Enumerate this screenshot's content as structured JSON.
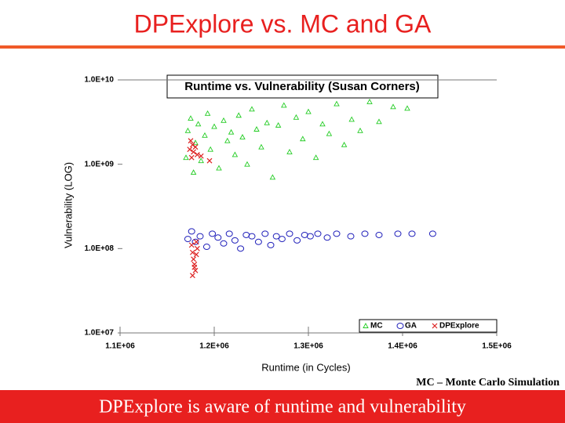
{
  "slide": {
    "title": "DPExplore vs. MC and GA",
    "note": "MC – Monte Carlo Simulation",
    "footer": "DPExplore is aware of runtime and vulnerability"
  },
  "chart_data": {
    "type": "scatter",
    "title": "Runtime vs. Vulnerability (Susan Corners)",
    "x_label": "Runtime (in Cycles)",
    "y_label": "Vulnerability (LOG)",
    "xlim": [
      1100000,
      1500000
    ],
    "xticks": [
      {
        "value": 1100000,
        "label": "1.1E+06"
      },
      {
        "value": 1200000,
        "label": "1.2E+06"
      },
      {
        "value": 1300000,
        "label": "1.3E+06"
      },
      {
        "value": 1400000,
        "label": "1.4E+06"
      },
      {
        "value": 1500000,
        "label": "1.5E+06"
      }
    ],
    "ylim": [
      10000000,
      10000000000
    ],
    "log_y": true,
    "yticks": [
      {
        "value": 10000000,
        "label": "1.0E+07"
      },
      {
        "value": 100000000,
        "label": "1.0E+08"
      },
      {
        "value": 1000000000,
        "label": "1.0E+09"
      },
      {
        "value": 10000000000,
        "label": "1.0E+10"
      }
    ],
    "legend": "lower right",
    "series": [
      {
        "name": "MC",
        "color": "#22cc22",
        "marker": "triangle",
        "x": [
          1170000,
          1172000,
          1175000,
          1178000,
          1180000,
          1183000,
          1186000,
          1190000,
          1193000,
          1196000,
          1200000,
          1205000,
          1210000,
          1214000,
          1218000,
          1222000,
          1226000,
          1230000,
          1235000,
          1240000,
          1245000,
          1250000,
          1256000,
          1262000,
          1268000,
          1274000,
          1280000,
          1287000,
          1294000,
          1300000,
          1308000,
          1315000,
          1322000,
          1330000,
          1338000,
          1346000,
          1355000,
          1365000,
          1375000,
          1390000,
          1405000
        ],
        "values": [
          1200000000,
          2500000000,
          3500000000,
          800000000,
          1800000000,
          3000000000,
          1100000000,
          2200000000,
          4000000000,
          1500000000,
          2800000000,
          900000000,
          3300000000,
          1900000000,
          2400000000,
          1300000000,
          3800000000,
          2100000000,
          1000000000,
          4500000000,
          2600000000,
          1600000000,
          3100000000,
          700000000,
          2900000000,
          5000000000,
          1400000000,
          3600000000,
          2000000000,
          4200000000,
          1200000000,
          3000000000,
          2300000000,
          5200000000,
          1700000000,
          3400000000,
          2500000000,
          5500000000,
          3200000000,
          4800000000,
          4600000000
        ]
      },
      {
        "name": "GA",
        "color": "#2222bb",
        "marker": "circle",
        "x": [
          1172000,
          1176000,
          1180000,
          1185000,
          1192000,
          1198000,
          1204000,
          1210000,
          1216000,
          1222000,
          1228000,
          1234000,
          1240000,
          1247000,
          1254000,
          1260000,
          1266000,
          1272000,
          1280000,
          1288000,
          1296000,
          1302000,
          1310000,
          1320000,
          1330000,
          1345000,
          1360000,
          1375000,
          1395000,
          1410000,
          1432000
        ],
        "values": [
          130000000,
          160000000,
          120000000,
          140000000,
          105000000,
          150000000,
          135000000,
          115000000,
          150000000,
          125000000,
          100000000,
          145000000,
          140000000,
          120000000,
          150000000,
          110000000,
          140000000,
          130000000,
          150000000,
          125000000,
          145000000,
          140000000,
          150000000,
          135000000,
          150000000,
          140000000,
          150000000,
          145000000,
          150000000,
          150000000,
          150000000
        ]
      },
      {
        "name": "DPExplore",
        "color": "#dd2222",
        "marker": "x",
        "x": [
          1174000,
          1175000,
          1176000,
          1177000,
          1178000,
          1180000,
          1182000,
          1186000,
          1195000,
          1176000,
          1177000,
          1178000,
          1179000,
          1180000,
          1181000,
          1182000,
          1177000,
          1179000,
          1181000
        ],
        "values": [
          1500000000,
          1900000000,
          1200000000,
          1700000000,
          1400000000,
          1600000000,
          1300000000,
          1250000000,
          1100000000,
          110000000,
          90000000,
          75000000,
          65000000,
          55000000,
          85000000,
          100000000,
          48000000,
          60000000,
          120000000
        ]
      }
    ]
  }
}
